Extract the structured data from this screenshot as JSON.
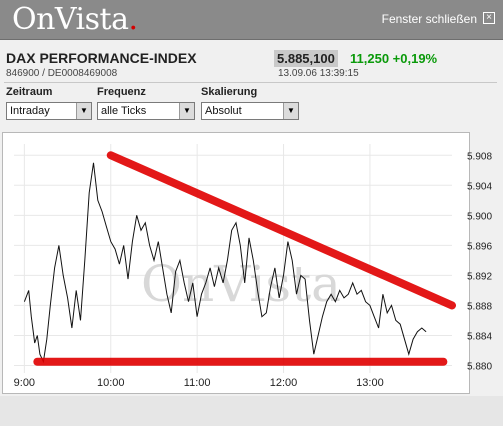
{
  "header": {
    "logo_text": "OnVista",
    "logo_dot": ".",
    "close_label": "Fenster schließen",
    "close_icon": "close-icon"
  },
  "instrument": {
    "name": "DAX PERFORMANCE-INDEX",
    "ids": "846900 / DE0008469008",
    "price": "5.885,100",
    "change": "11,250 +0,19%",
    "datetime": "13.09.06 13:39:15"
  },
  "controls": {
    "zeitraum": {
      "label": "Zeitraum",
      "value": "Intraday"
    },
    "frequenz": {
      "label": "Frequenz",
      "value": "alle Ticks"
    },
    "skalierung": {
      "label": "Skalierung",
      "value": "Absolut"
    }
  },
  "colors": {
    "header_bg": "#8a8a8a",
    "positive": "#0a9a0a",
    "annotation_red": "#e00000"
  },
  "chart_data": {
    "type": "line",
    "watermark": "OnVista",
    "x_tick_labels": [
      "9:00",
      "10:00",
      "11:00",
      "12:00",
      "13:00"
    ],
    "x_tick_hours": [
      9,
      10,
      11,
      12,
      13
    ],
    "xlim": [
      8.88,
      13.95
    ],
    "y_tick_labels": [
      "5.880",
      "5.884",
      "5.888",
      "5.892",
      "5.896",
      "5.900",
      "5.904",
      "5.908"
    ],
    "y_ticks": [
      5880,
      5884,
      5888,
      5892,
      5896,
      5900,
      5904,
      5908
    ],
    "ylim": [
      5879.0,
      5909.5
    ],
    "grid": true,
    "series": [
      {
        "x": [
          9.0,
          9.05,
          9.08,
          9.12,
          9.15,
          9.18,
          9.22,
          9.26,
          9.3,
          9.35,
          9.4,
          9.45,
          9.5,
          9.55,
          9.6,
          9.65,
          9.7,
          9.75,
          9.8,
          9.85,
          9.9,
          9.95,
          10.0,
          10.05,
          10.1,
          10.15,
          10.2,
          10.25,
          10.3,
          10.35,
          10.4,
          10.45,
          10.5,
          10.55,
          10.6,
          10.65,
          10.7,
          10.75,
          10.8,
          10.85,
          10.9,
          10.95,
          11.0,
          11.05,
          11.1,
          11.15,
          11.2,
          11.25,
          11.3,
          11.35,
          11.4,
          11.45,
          11.5,
          11.55,
          11.6,
          11.65,
          11.7,
          11.75,
          11.8,
          11.85,
          11.9,
          11.95,
          12.0,
          12.05,
          12.1,
          12.15,
          12.2,
          12.25,
          12.3,
          12.35,
          12.4,
          12.45,
          12.5,
          12.55,
          12.6,
          12.65,
          12.7,
          12.75,
          12.8,
          12.85,
          12.9,
          12.95,
          13.0,
          13.05,
          13.1,
          13.15,
          13.2,
          13.25,
          13.3,
          13.35,
          13.4,
          13.45,
          13.5,
          13.55,
          13.6,
          13.65
        ],
        "y": [
          5888.5,
          5890.0,
          5886.5,
          5883.0,
          5884.0,
          5881.5,
          5880.5,
          5883.5,
          5888.0,
          5893.0,
          5896.0,
          5892.0,
          5889.0,
          5885.0,
          5890.0,
          5886.0,
          5894.0,
          5903.0,
          5907.0,
          5902.0,
          5900.5,
          5898.5,
          5896.5,
          5895.5,
          5893.5,
          5896.0,
          5891.5,
          5896.5,
          5900.0,
          5898.0,
          5899.0,
          5896.0,
          5894.0,
          5896.5,
          5893.0,
          5889.5,
          5887.0,
          5892.5,
          5894.0,
          5891.0,
          5888.5,
          5891.0,
          5886.5,
          5889.5,
          5891.0,
          5893.0,
          5890.5,
          5893.0,
          5891.0,
          5894.0,
          5898.0,
          5899.0,
          5896.0,
          5891.0,
          5897.0,
          5894.0,
          5890.0,
          5886.5,
          5887.0,
          5890.5,
          5893.0,
          5889.0,
          5892.0,
          5896.5,
          5894.0,
          5889.5,
          5892.0,
          5891.5,
          5886.0,
          5881.5,
          5884.0,
          5886.5,
          5888.5,
          5889.5,
          5888.5,
          5890.0,
          5889.0,
          5889.5,
          5891.0,
          5889.5,
          5890.0,
          5888.5,
          5888.0,
          5886.5,
          5885.0,
          5889.5,
          5887.0,
          5888.0,
          5886.0,
          5885.5,
          5883.5,
          5881.5,
          5883.5,
          5884.5,
          5885.0,
          5884.5
        ]
      }
    ],
    "annotations": [
      {
        "type": "trendline",
        "color": "#e00000",
        "x": [
          10.0,
          13.95
        ],
        "y": [
          5908.0,
          5888.0
        ]
      },
      {
        "type": "trendline",
        "color": "#e00000",
        "x": [
          9.15,
          13.85
        ],
        "y": [
          5880.5,
          5880.5
        ]
      }
    ]
  }
}
